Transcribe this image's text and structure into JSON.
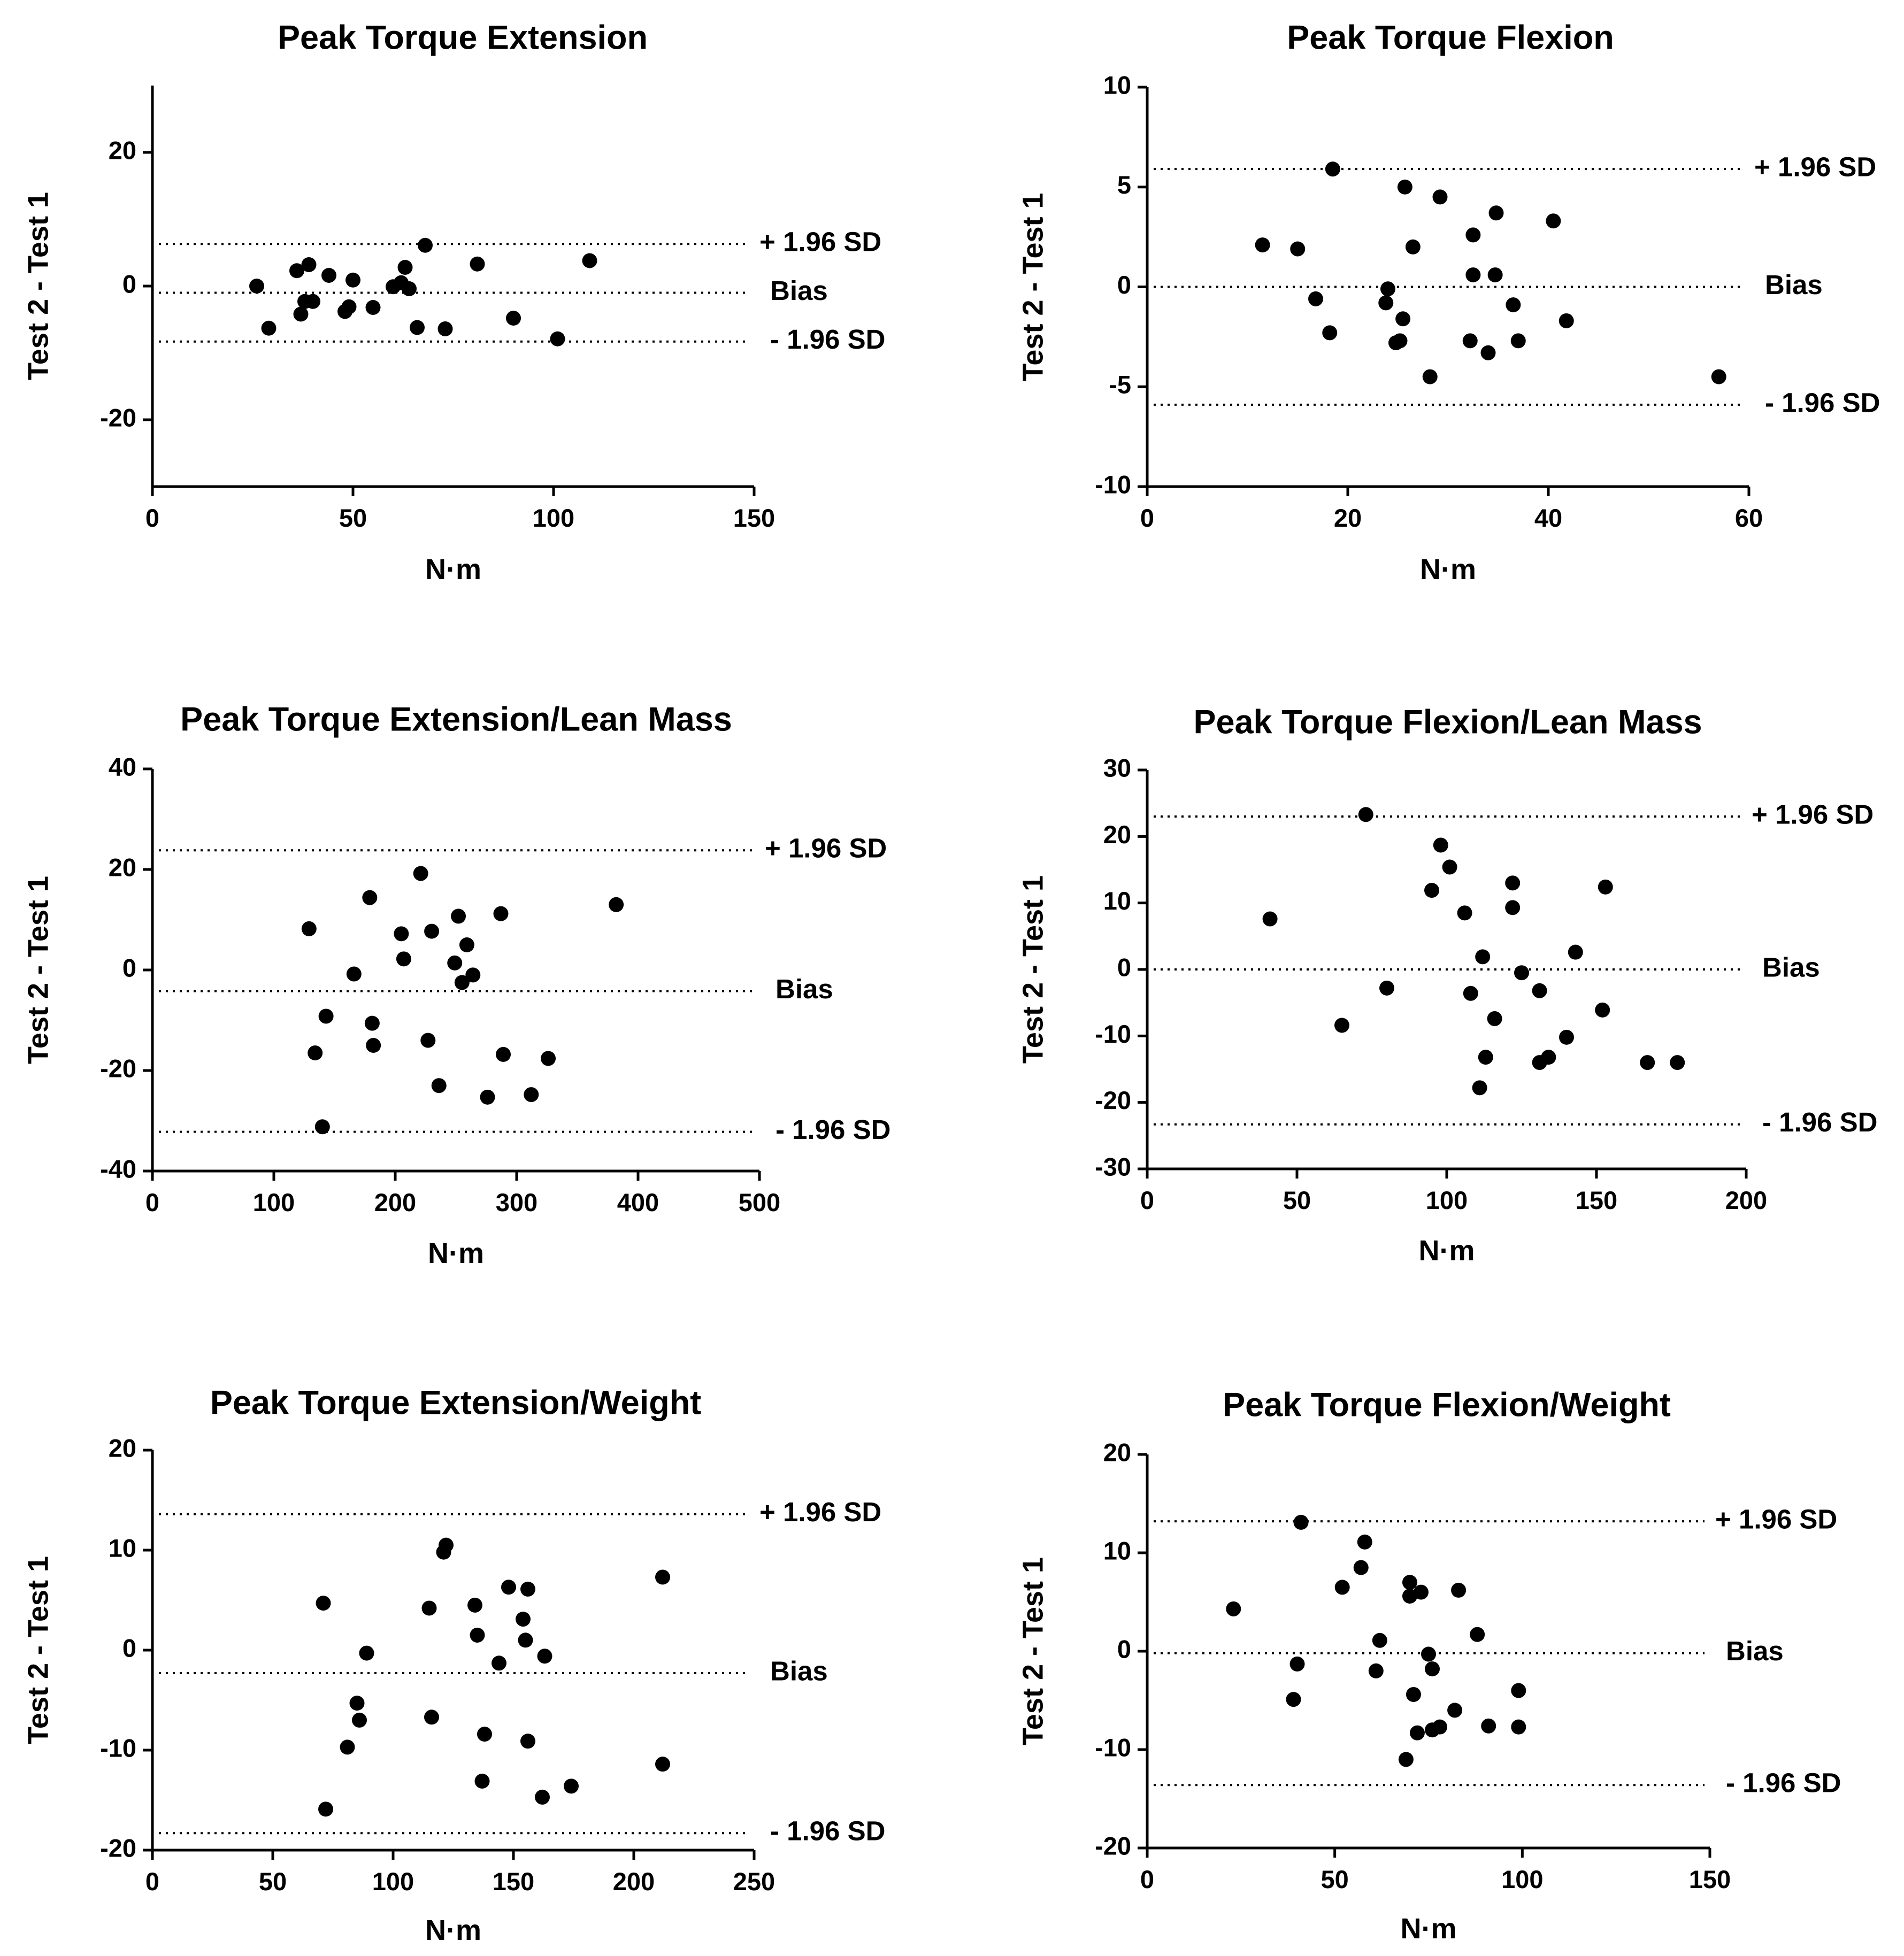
{
  "chart_data": [
    {
      "type": "scatter",
      "title": "Peak Torque Extension",
      "xlabel": "N·m",
      "ylabel": "Test 2 - Test 1",
      "xlim": [
        0,
        150
      ],
      "ylim": [
        -30,
        30
      ],
      "xticks": [
        0,
        50,
        100,
        150
      ],
      "yticks": [
        -20,
        0,
        20
      ],
      "grid": false,
      "reference_lines": [
        {
          "label": "+ 1.96 SD",
          "y": 6.3
        },
        {
          "label": "Bias",
          "y": -1.0
        },
        {
          "label": "- 1.96 SD",
          "y": -8.3
        }
      ],
      "points": [
        [
          26,
          0.0
        ],
        [
          29,
          -6.3
        ],
        [
          36,
          2.3
        ],
        [
          37,
          -4.2
        ],
        [
          38,
          -2.3
        ],
        [
          39,
          3.2
        ],
        [
          40,
          -2.3
        ],
        [
          44,
          1.6
        ],
        [
          48,
          -3.8
        ],
        [
          50,
          0.9
        ],
        [
          49,
          -3.1
        ],
        [
          55,
          -3.2
        ],
        [
          60,
          -0.1
        ],
        [
          62,
          0.5
        ],
        [
          63,
          2.8
        ],
        [
          64,
          -0.4
        ],
        [
          66,
          -6.2
        ],
        [
          68,
          6.1
        ],
        [
          73,
          -6.4
        ],
        [
          81,
          3.3
        ],
        [
          90,
          -4.8
        ],
        [
          101,
          -7.9
        ],
        [
          109,
          3.8
        ]
      ]
    },
    {
      "type": "scatter",
      "title": "Peak Torque Flexion",
      "xlabel": "N·m",
      "ylabel": "Test 2 - Test 1",
      "xlim": [
        0,
        60
      ],
      "ylim": [
        -10,
        10
      ],
      "xticks": [
        0,
        20,
        40,
        60
      ],
      "yticks": [
        -10,
        -5,
        0,
        5,
        10
      ],
      "grid": false,
      "reference_lines": [
        {
          "label": "+ 1.96 SD",
          "y": 5.9
        },
        {
          "label": "Bias",
          "y": 0.0
        },
        {
          "label": "- 1.96 SD",
          "y": -5.9
        }
      ],
      "points": [
        [
          11.5,
          2.1
        ],
        [
          15,
          1.9
        ],
        [
          16.8,
          -0.6
        ],
        [
          18.2,
          -2.3
        ],
        [
          18.5,
          5.9
        ],
        [
          23.8,
          -0.8
        ],
        [
          24,
          -0.1
        ],
        [
          24.8,
          -2.8
        ],
        [
          25.2,
          -2.7
        ],
        [
          25.5,
          -1.6
        ],
        [
          25.7,
          5.0
        ],
        [
          26.5,
          2.0
        ],
        [
          28.2,
          -4.5
        ],
        [
          29.2,
          4.5
        ],
        [
          32.2,
          -2.7
        ],
        [
          32.5,
          2.6
        ],
        [
          32.5,
          0.6
        ],
        [
          34,
          -3.3
        ],
        [
          34.7,
          0.6
        ],
        [
          34.8,
          3.7
        ],
        [
          36.5,
          -0.9
        ],
        [
          37,
          -2.7
        ],
        [
          40.5,
          3.3
        ],
        [
          41.8,
          -1.7
        ],
        [
          57,
          -4.5
        ]
      ]
    },
    {
      "type": "scatter",
      "title": "Peak Torque Extension/Lean Mass",
      "xlabel": "N·m",
      "ylabel": "Test 2 - Test 1",
      "xlim": [
        0,
        500
      ],
      "ylim": [
        -40,
        40
      ],
      "xticks": [
        0,
        100,
        200,
        300,
        400,
        500
      ],
      "yticks": [
        -40,
        -20,
        0,
        20,
        40
      ],
      "grid": false,
      "reference_lines": [
        {
          "label": "+ 1.96 SD",
          "y": 23.8
        },
        {
          "label": "Bias",
          "y": -4.2
        },
        {
          "label": "- 1.96 SD",
          "y": -32.2
        }
      ],
      "points": [
        [
          129,
          8.2
        ],
        [
          134,
          -16.5
        ],
        [
          140,
          -31.2
        ],
        [
          143,
          -9.2
        ],
        [
          166,
          -0.8
        ],
        [
          179,
          14.4
        ],
        [
          181,
          -10.6
        ],
        [
          182,
          -15.0
        ],
        [
          205,
          7.2
        ],
        [
          207,
          2.2
        ],
        [
          221,
          19.2
        ],
        [
          227,
          -14.0
        ],
        [
          230,
          7.7
        ],
        [
          236,
          -23.0
        ],
        [
          249,
          1.4
        ],
        [
          252,
          10.7
        ],
        [
          255,
          -2.5
        ],
        [
          259,
          5.0
        ],
        [
          264,
          -1.0
        ],
        [
          276,
          -25.3
        ],
        [
          287,
          11.2
        ],
        [
          289,
          -16.8
        ],
        [
          312,
          -24.8
        ],
        [
          326,
          -17.6
        ],
        [
          382,
          13.0
        ]
      ]
    },
    {
      "type": "scatter",
      "title": "Peak Torque Flexion/Lean Mass",
      "xlabel": "N·m",
      "ylabel": "Test 2 - Test 1",
      "xlim": [
        0,
        200
      ],
      "ylim": [
        -30,
        30
      ],
      "xticks": [
        0,
        50,
        100,
        150,
        200
      ],
      "yticks": [
        -30,
        -20,
        -10,
        0,
        10,
        20,
        30
      ],
      "grid": false,
      "reference_lines": [
        {
          "label": "+ 1.96 SD",
          "y": 23.0
        },
        {
          "label": "Bias",
          "y": 0.0
        },
        {
          "label": "- 1.96 SD",
          "y": -23.3
        }
      ],
      "points": [
        [
          41,
          7.6
        ],
        [
          65,
          -8.4
        ],
        [
          73,
          23.3
        ],
        [
          80,
          -2.8
        ],
        [
          95,
          11.9
        ],
        [
          98,
          18.7
        ],
        [
          101,
          15.4
        ],
        [
          106,
          8.5
        ],
        [
          108,
          -3.6
        ],
        [
          111,
          -17.8
        ],
        [
          112,
          1.9
        ],
        [
          113,
          -13.2
        ],
        [
          116,
          -7.4
        ],
        [
          122,
          13.0
        ],
        [
          122,
          9.3
        ],
        [
          125,
          -0.5
        ],
        [
          131,
          -14.0
        ],
        [
          131,
          -3.2
        ],
        [
          134,
          -13.2
        ],
        [
          140,
          -10.2
        ],
        [
          143,
          2.6
        ],
        [
          152,
          -6.1
        ],
        [
          153,
          12.4
        ],
        [
          167,
          -14.0
        ],
        [
          177,
          -14.0
        ]
      ]
    },
    {
      "type": "scatter",
      "title": "Peak Torque Extension/Weight",
      "xlabel": "N·m",
      "ylabel": "Test 2 - Test 1",
      "xlim": [
        0,
        250
      ],
      "ylim": [
        -20,
        20
      ],
      "xticks": [
        0,
        50,
        100,
        150,
        200,
        250
      ],
      "yticks": [
        -20,
        -10,
        0,
        10,
        20
      ],
      "grid": false,
      "reference_lines": [
        {
          "label": "+ 1.96 SD",
          "y": 13.6
        },
        {
          "label": "Bias",
          "y": -2.3
        },
        {
          "label": "- 1.96 SD",
          "y": -18.3
        }
      ],
      "points": [
        [
          71,
          4.7
        ],
        [
          72,
          -15.9
        ],
        [
          81,
          -9.7
        ],
        [
          85,
          -5.3
        ],
        [
          86,
          -7.0
        ],
        [
          89,
          -0.3
        ],
        [
          115,
          4.2
        ],
        [
          116,
          -6.7
        ],
        [
          121,
          9.8
        ],
        [
          122,
          10.5
        ],
        [
          134,
          4.5
        ],
        [
          135,
          1.5
        ],
        [
          137,
          -13.1
        ],
        [
          138,
          -8.4
        ],
        [
          144,
          -1.3
        ],
        [
          148,
          6.3
        ],
        [
          154,
          3.1
        ],
        [
          155,
          1.0
        ],
        [
          156,
          6.1
        ],
        [
          156,
          -9.1
        ],
        [
          162,
          -14.7
        ],
        [
          163,
          -0.6
        ],
        [
          174,
          -13.6
        ],
        [
          212,
          7.3
        ],
        [
          212,
          -11.4
        ]
      ]
    },
    {
      "type": "scatter",
      "title": "Peak Torque Flexion/Weight",
      "xlabel": "N·m",
      "ylabel": "Test 2 - Test 1",
      "xlim": [
        0,
        150
      ],
      "ylim": [
        -20,
        20
      ],
      "xticks": [
        0,
        50,
        100,
        150
      ],
      "yticks": [
        -20,
        -10,
        0,
        10,
        20
      ],
      "grid": false,
      "reference_lines": [
        {
          "label": "+ 1.96 SD",
          "y": 13.2
        },
        {
          "label": "Bias",
          "y": -0.2
        },
        {
          "label": "- 1.96 SD",
          "y": -13.6
        }
      ],
      "points": [
        [
          23,
          4.3
        ],
        [
          39,
          -4.9
        ],
        [
          40,
          -1.3
        ],
        [
          41,
          13.1
        ],
        [
          52,
          6.5
        ],
        [
          57,
          8.5
        ],
        [
          58,
          11.1
        ],
        [
          61,
          -2.0
        ],
        [
          62,
          1.1
        ],
        [
          70,
          7.0
        ],
        [
          69,
          -11.0
        ],
        [
          70,
          5.6
        ],
        [
          71,
          -4.4
        ],
        [
          72,
          -8.3
        ],
        [
          73,
          6.0
        ],
        [
          75,
          -0.3
        ],
        [
          76,
          -1.8
        ],
        [
          76,
          -8.0
        ],
        [
          78,
          -7.7
        ],
        [
          82,
          -6.0
        ],
        [
          83,
          6.2
        ],
        [
          88,
          1.7
        ],
        [
          91,
          -7.6
        ],
        [
          99,
          -7.7
        ],
        [
          99,
          -4.0
        ]
      ]
    }
  ]
}
